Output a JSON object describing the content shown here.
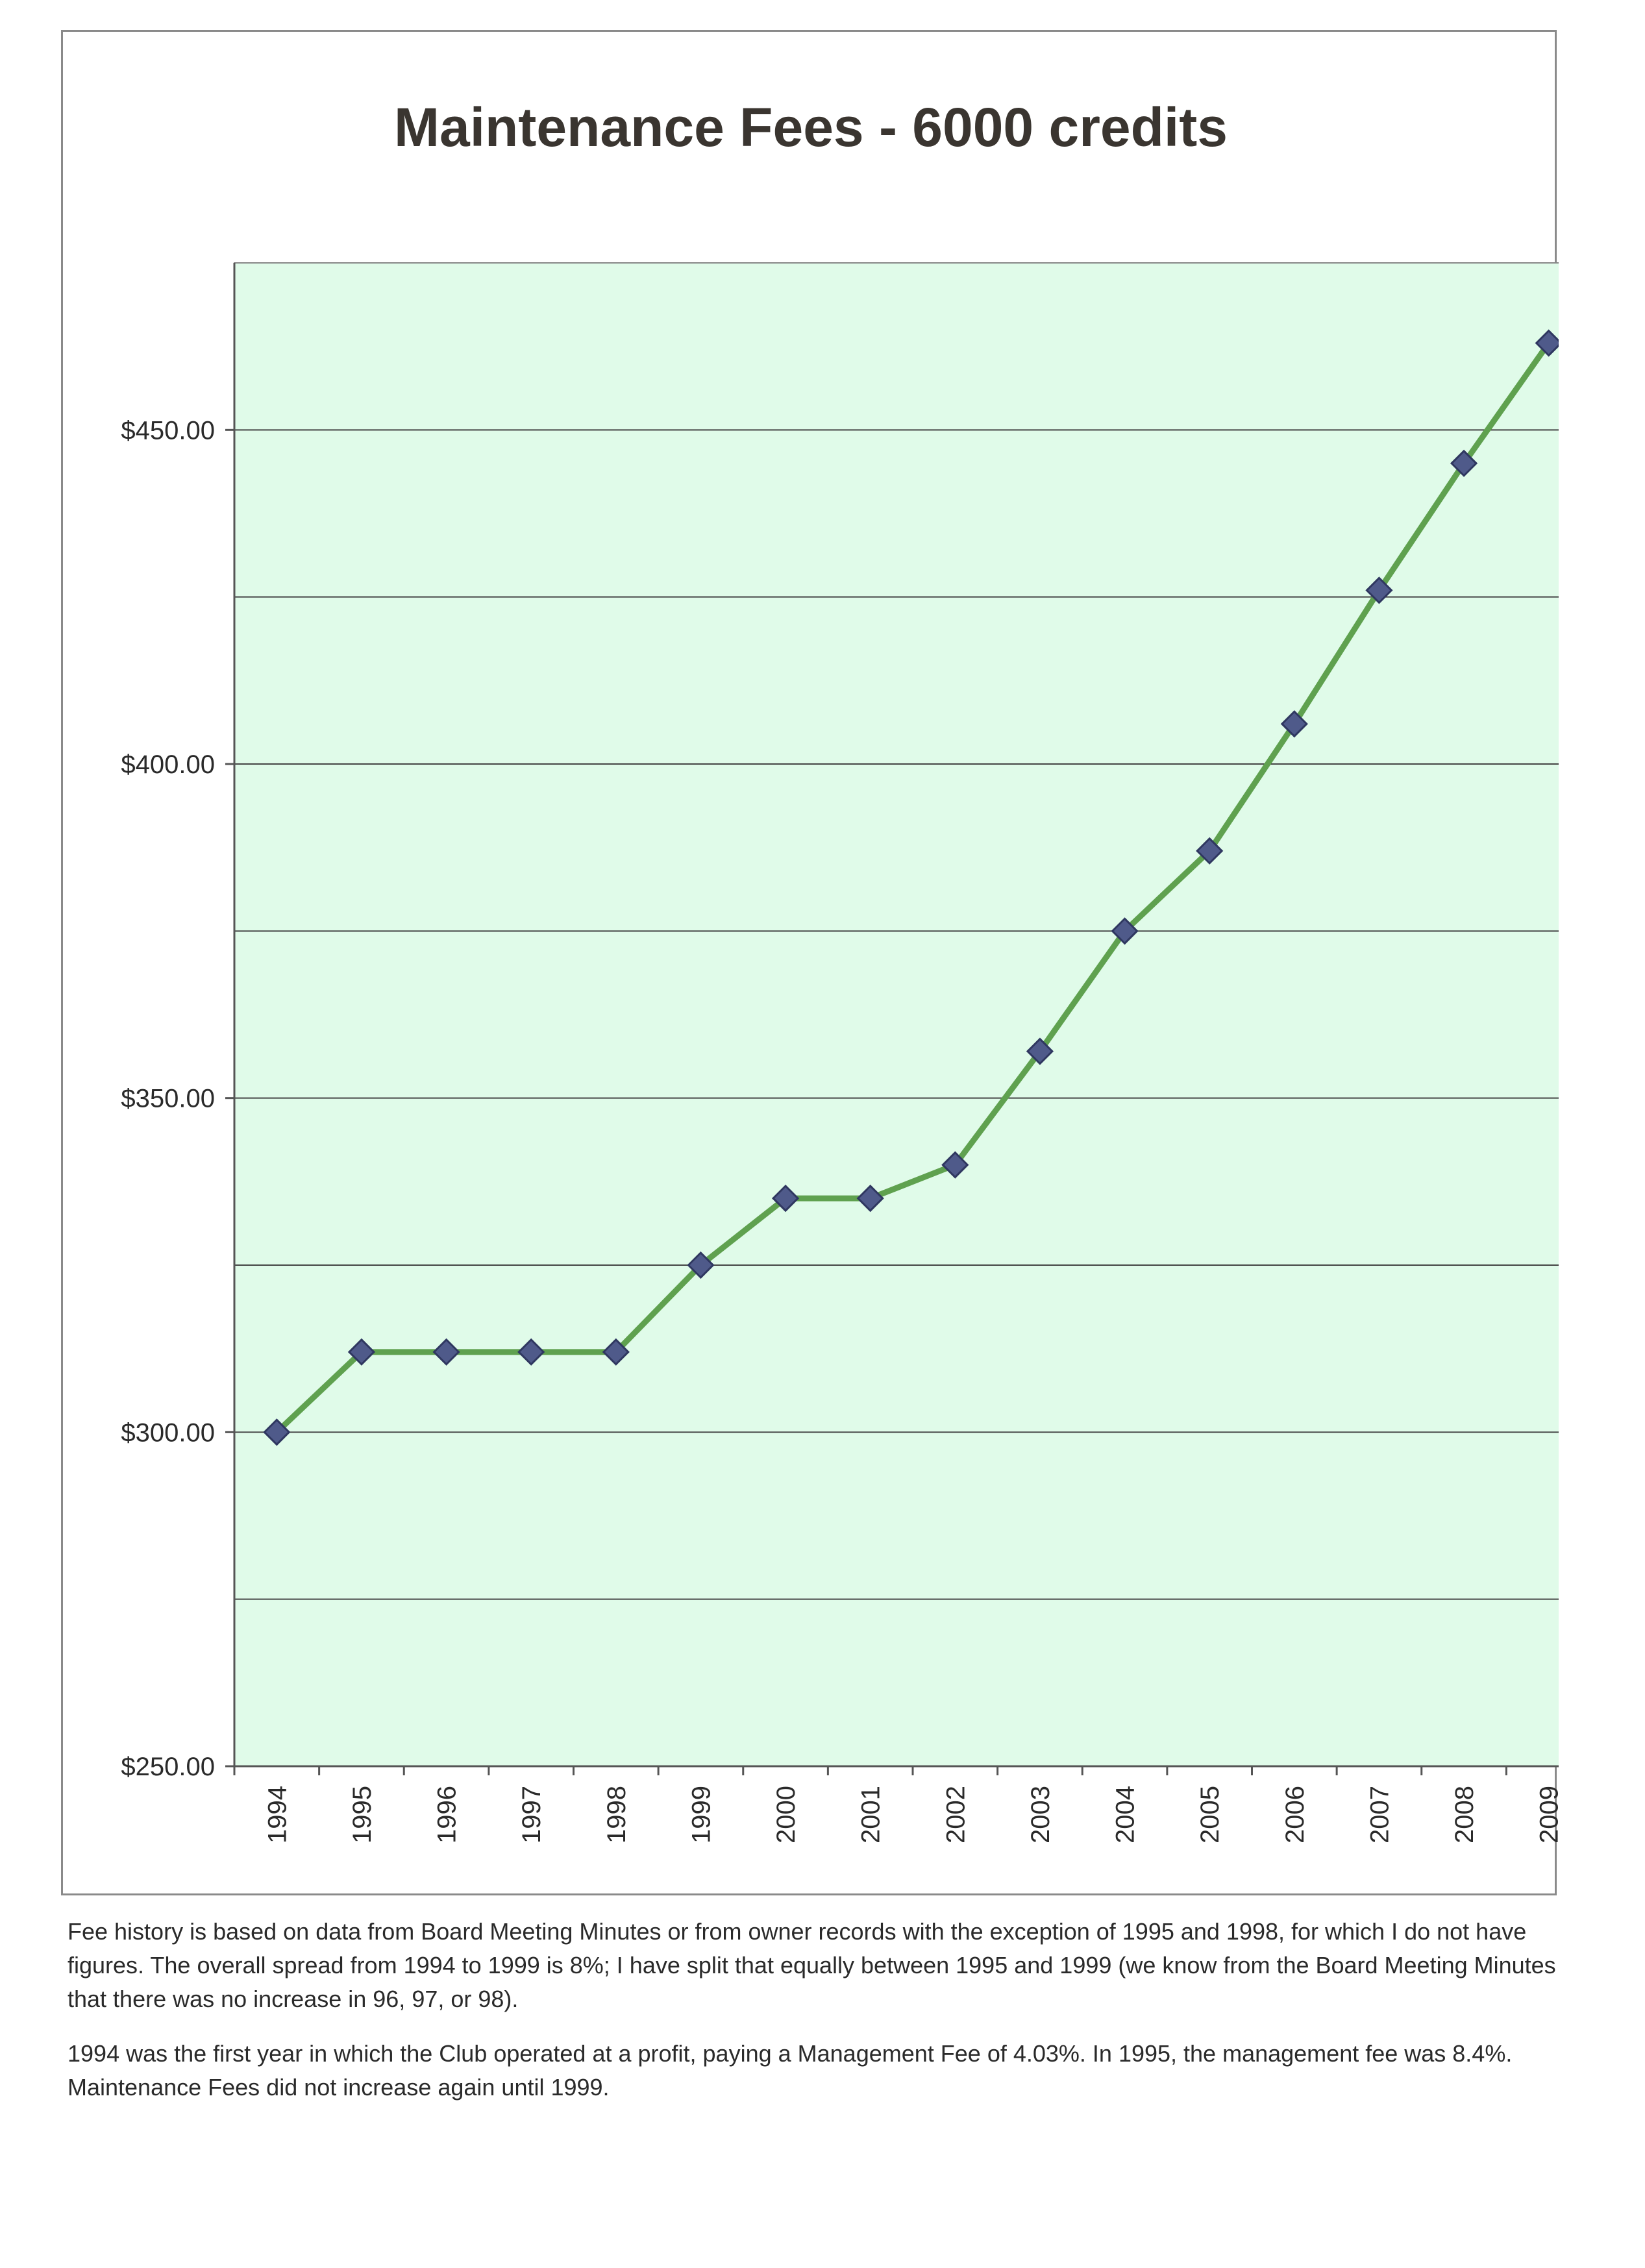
{
  "chart_data": {
    "type": "line",
    "title": "Maintenance Fees - 6000 credits",
    "xlabel": "",
    "ylabel": "",
    "categories": [
      "1994",
      "1995",
      "1996",
      "1997",
      "1998",
      "1999",
      "2000",
      "2001",
      "2002",
      "2003",
      "2004",
      "2005",
      "2006",
      "2007",
      "2008",
      "2009"
    ],
    "series": [
      {
        "name": "Maintenance Fees",
        "values": [
          300,
          312,
          312,
          312,
          312,
          325,
          335,
          335,
          340,
          357,
          375,
          387,
          406,
          426,
          445,
          463
        ]
      }
    ],
    "ylim": [
      250,
      475
    ],
    "y_tick_values": [
      250,
      300,
      350,
      400,
      450
    ],
    "y_tick_labels": [
      "$250.00",
      "$300.00",
      "$350.00",
      "$400.00",
      "$450.00"
    ],
    "gridline_values": [
      275,
      300,
      325,
      350,
      375,
      400,
      425,
      450
    ],
    "grid": true,
    "colors": {
      "plot_background": "#e0fbe9",
      "line": "#5fa14f",
      "marker": "#4f5a8a",
      "gridline": "#444444"
    }
  },
  "notes": {
    "paragraph1": "Fee history is based on data from Board Meeting Minutes or from owner records with the exception of 1995 and 1998, for which I do not have figures. The overall spread from 1994 to 1999 is 8%; I have split that equally between 1995 and 1999 (we know from the Board Meeting Minutes that there was no increase in 96, 97, or 98).",
    "paragraph2": "1994 was the first year in which the Club operated at a profit, paying a Management Fee of 4.03%.  In 1995, the management fee was 8.4%.  Maintenance Fees did not increase again until 1999."
  }
}
